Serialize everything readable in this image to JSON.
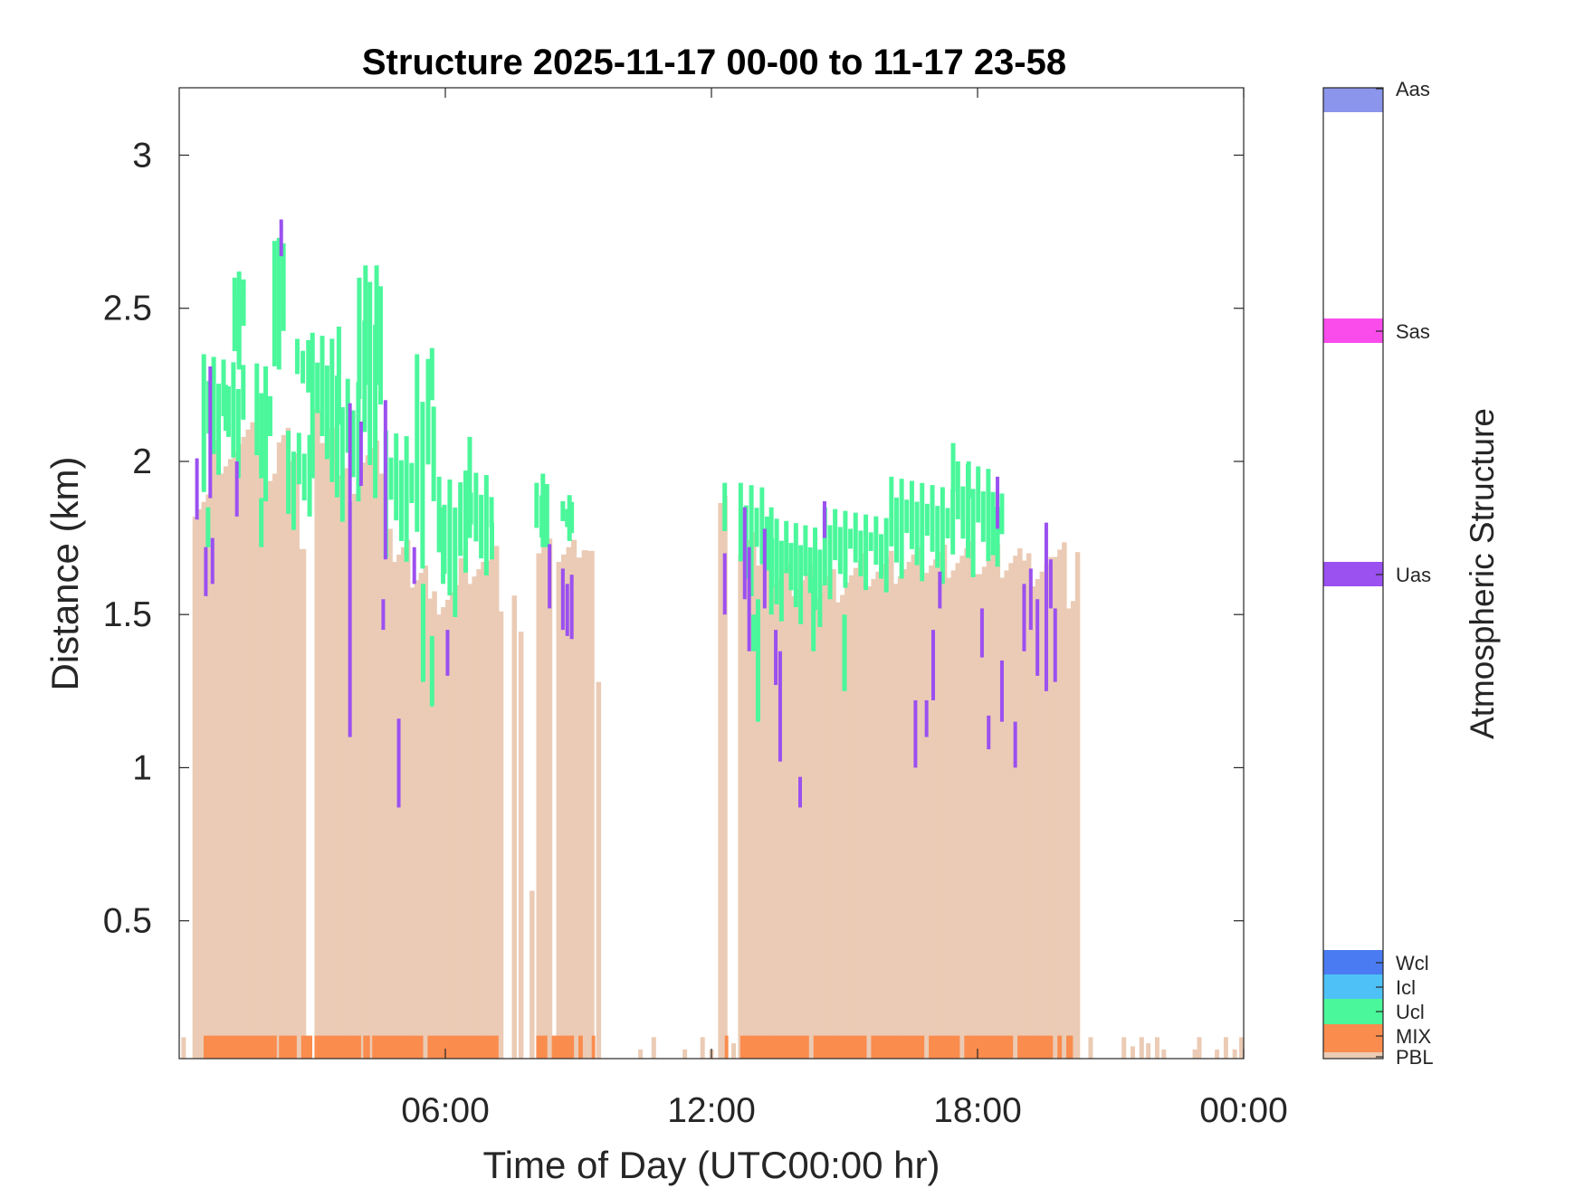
{
  "chart_data": {
    "type": "bar",
    "title": "Structure 2025-11-17 00-00 to 11-17 23-58",
    "xlabel": "Time of Day (UTC00:00 hr)",
    "ylabel": "Distance (km)",
    "xlim": [
      0,
      24
    ],
    "ylim": [
      0.05,
      3.22
    ],
    "xticks": [
      {
        "v": 6,
        "label": "06:00"
      },
      {
        "v": 12,
        "label": "12:00"
      },
      {
        "v": 18,
        "label": "18:00"
      },
      {
        "v": 24,
        "label": "00:00"
      }
    ],
    "yticks": [
      {
        "v": 0.5,
        "label": "0.5"
      },
      {
        "v": 1,
        "label": "1"
      },
      {
        "v": 1.5,
        "label": "1.5"
      },
      {
        "v": 2,
        "label": "2"
      },
      {
        "v": 2.5,
        "label": "2.5"
      },
      {
        "v": 3,
        "label": "3"
      }
    ],
    "grid": false,
    "colorbar": {
      "label": "Atmospheric Structure",
      "categories": [
        {
          "name": "PBL",
          "color": "#EBCBB5"
        },
        {
          "name": "MIX",
          "color": "#FA8C4E"
        },
        {
          "name": "Ucl",
          "color": "#4BF79B"
        },
        {
          "name": "Icl",
          "color": "#4EC2F7"
        },
        {
          "name": "Wcl",
          "color": "#4A7BF2"
        },
        {
          "name": "Uas",
          "color": "#9B50F0"
        },
        {
          "name": "Sas",
          "color": "#FA4CEB"
        },
        {
          "name": "Aas",
          "color": "#8A95EB"
        }
      ]
    },
    "pbl_segments": [
      {
        "t0": 0.3,
        "t1": 0.7,
        "top": 1.88
      },
      {
        "t0": 0.7,
        "t1": 1.3,
        "top": 2.02
      },
      {
        "t0": 1.3,
        "t1": 1.8,
        "top": 2.08
      },
      {
        "t0": 1.8,
        "t1": 2.2,
        "top": 1.96
      },
      {
        "t0": 2.2,
        "t1": 2.7,
        "top": 2.05
      },
      {
        "t0": 2.7,
        "t1": 2.85,
        "top": 1.75
      },
      {
        "t0": 3.05,
        "t1": 3.5,
        "top": 2.12
      },
      {
        "t0": 3.5,
        "t1": 4.0,
        "top": 1.93
      },
      {
        "t0": 4.0,
        "t1": 4.6,
        "top": 2.02
      },
      {
        "t0": 4.6,
        "t1": 5.2,
        "top": 1.72
      },
      {
        "t0": 5.2,
        "t1": 5.8,
        "top": 1.6
      },
      {
        "t0": 5.8,
        "t1": 6.3,
        "top": 1.56
      },
      {
        "t0": 6.3,
        "t1": 6.9,
        "top": 1.66
      },
      {
        "t0": 6.9,
        "t1": 7.2,
        "top": 1.7
      },
      {
        "t0": 7.2,
        "t1": 7.3,
        "top": 1.45
      },
      {
        "t0": 7.5,
        "t1": 7.6,
        "top": 1.55
      },
      {
        "t0": 7.65,
        "t1": 7.75,
        "top": 1.48
      },
      {
        "t0": 7.9,
        "t1": 8.0,
        "top": 0.55
      },
      {
        "t0": 8.05,
        "t1": 8.4,
        "top": 1.7
      },
      {
        "t0": 8.5,
        "t1": 8.95,
        "top": 1.72
      },
      {
        "t0": 8.95,
        "t1": 9.2,
        "top": 1.65
      },
      {
        "t0": 9.2,
        "t1": 9.35,
        "top": 1.72
      },
      {
        "t0": 9.4,
        "t1": 9.5,
        "top": 1.34
      },
      {
        "t0": 12.15,
        "t1": 12.35,
        "top": 1.84
      },
      {
        "t0": 12.6,
        "t1": 13.2,
        "top": 1.72
      },
      {
        "t0": 13.2,
        "t1": 14.0,
        "top": 1.62
      },
      {
        "t0": 14.0,
        "t1": 15.0,
        "top": 1.6
      },
      {
        "t0": 15.0,
        "t1": 16.0,
        "top": 1.64
      },
      {
        "t0": 16.0,
        "t1": 17.0,
        "top": 1.66
      },
      {
        "t0": 17.0,
        "t1": 18.0,
        "top": 1.68
      },
      {
        "t0": 18.0,
        "t1": 19.0,
        "top": 1.68
      },
      {
        "t0": 19.0,
        "t1": 19.7,
        "top": 1.64
      },
      {
        "t0": 19.7,
        "t1": 20.0,
        "top": 1.7
      },
      {
        "t0": 20.0,
        "t1": 20.2,
        "top": 1.58
      },
      {
        "t0": 20.2,
        "t1": 20.3,
        "top": 1.68
      }
    ],
    "mix_segments": [
      {
        "t0": 0.55,
        "t1": 2.2
      },
      {
        "t0": 2.25,
        "t1": 2.65
      },
      {
        "t0": 2.75,
        "t1": 3.0
      },
      {
        "t0": 3.05,
        "t1": 4.1
      },
      {
        "t0": 4.15,
        "t1": 4.3
      },
      {
        "t0": 4.35,
        "t1": 5.5
      },
      {
        "t0": 5.6,
        "t1": 7.2
      },
      {
        "t0": 8.05,
        "t1": 8.3
      },
      {
        "t0": 8.4,
        "t1": 8.9
      },
      {
        "t0": 9.0,
        "t1": 9.1
      },
      {
        "t0": 9.3,
        "t1": 9.38
      },
      {
        "t0": 12.3,
        "t1": 12.38
      },
      {
        "t0": 12.65,
        "t1": 14.2
      },
      {
        "t0": 14.3,
        "t1": 15.5
      },
      {
        "t0": 15.6,
        "t1": 16.8
      },
      {
        "t0": 16.9,
        "t1": 17.6
      },
      {
        "t0": 17.7,
        "t1": 18.8
      },
      {
        "t0": 18.9,
        "t1": 19.7
      },
      {
        "t0": 19.8,
        "t1": 19.9
      },
      {
        "t0": 20.0,
        "t1": 20.15
      }
    ],
    "pbl_sparse_bars": [
      {
        "t": 0.1,
        "top": 0.12
      },
      {
        "t": 10.4,
        "top": 0.08
      },
      {
        "t": 10.7,
        "top": 0.12
      },
      {
        "t": 11.4,
        "top": 0.08
      },
      {
        "t": 11.8,
        "top": 0.12
      },
      {
        "t": 12.0,
        "top": 0.08
      },
      {
        "t": 12.5,
        "top": 0.1
      },
      {
        "t": 20.55,
        "top": 0.12
      },
      {
        "t": 21.3,
        "top": 0.12
      },
      {
        "t": 21.5,
        "top": 0.09
      },
      {
        "t": 21.7,
        "top": 0.12
      },
      {
        "t": 21.85,
        "top": 0.1
      },
      {
        "t": 22.05,
        "top": 0.12
      },
      {
        "t": 22.2,
        "top": 0.08
      },
      {
        "t": 22.9,
        "top": 0.08
      },
      {
        "t": 23.0,
        "top": 0.12
      },
      {
        "t": 23.4,
        "top": 0.08
      },
      {
        "t": 23.6,
        "top": 0.12
      },
      {
        "t": 23.8,
        "top": 0.08
      },
      {
        "t": 23.95,
        "top": 0.12
      }
    ],
    "ucl_bands": [
      {
        "t0": 0.5,
        "t1": 1.5,
        "lo": 1.9,
        "hi": 2.35
      },
      {
        "t0": 1.2,
        "t1": 1.5,
        "lo": 2.3,
        "hi": 2.6
      },
      {
        "t0": 1.7,
        "t1": 2.1,
        "lo": 1.82,
        "hi": 2.32
      },
      {
        "t0": 2.1,
        "t1": 2.4,
        "lo": 2.3,
        "hi": 2.72
      },
      {
        "t0": 2.4,
        "t1": 3.0,
        "lo": 1.75,
        "hi": 2.1
      },
      {
        "t0": 2.6,
        "t1": 3.1,
        "lo": 2.2,
        "hi": 2.4
      },
      {
        "t0": 2.95,
        "t1": 3.5,
        "lo": 1.92,
        "hi": 2.42
      },
      {
        "t0": 3.5,
        "t1": 4.1,
        "lo": 1.75,
        "hi": 2.28
      },
      {
        "t0": 4.0,
        "t1": 4.6,
        "lo": 1.88,
        "hi": 2.6
      },
      {
        "t0": 4.6,
        "t1": 5.3,
        "lo": 1.65,
        "hi": 2.1
      },
      {
        "t0": 5.3,
        "t1": 5.8,
        "lo": 1.55,
        "hi": 2.35
      },
      {
        "t0": 5.8,
        "t1": 6.4,
        "lo": 1.48,
        "hi": 1.95
      },
      {
        "t0": 6.4,
        "t1": 7.1,
        "lo": 1.6,
        "hi": 1.97
      },
      {
        "t0": 8.0,
        "t1": 8.35,
        "lo": 1.72,
        "hi": 1.93
      },
      {
        "t0": 8.6,
        "t1": 8.9,
        "lo": 1.74,
        "hi": 1.87
      },
      {
        "t0": 12.25,
        "t1": 12.35,
        "lo": 1.75,
        "hi": 1.93
      },
      {
        "t0": 12.6,
        "t1": 13.2,
        "lo": 1.55,
        "hi": 1.93
      },
      {
        "t0": 13.2,
        "t1": 14.5,
        "lo": 1.45,
        "hi": 1.82
      },
      {
        "t0": 14.5,
        "t1": 16.0,
        "lo": 1.55,
        "hi": 1.85
      },
      {
        "t0": 16.0,
        "t1": 17.5,
        "lo": 1.6,
        "hi": 1.95
      },
      {
        "t0": 17.5,
        "t1": 18.3,
        "lo": 1.58,
        "hi": 2.0
      },
      {
        "t0": 18.3,
        "t1": 18.6,
        "lo": 1.65,
        "hi": 1.9
      }
    ],
    "ucl_lines": [
      {
        "t": 2.25,
        "lo": 2.3,
        "hi": 2.73
      },
      {
        "t": 1.35,
        "lo": 2.3,
        "hi": 2.62
      },
      {
        "t": 1.05,
        "lo": 2.1,
        "hi": 2.25
      },
      {
        "t": 0.65,
        "lo": 1.72,
        "hi": 1.85
      },
      {
        "t": 1.85,
        "lo": 1.72,
        "hi": 1.88
      },
      {
        "t": 3.6,
        "lo": 2.12,
        "hi": 2.44
      },
      {
        "t": 4.2,
        "lo": 2.25,
        "hi": 2.64
      },
      {
        "t": 4.45,
        "lo": 2.25,
        "hi": 2.64
      },
      {
        "t": 5.7,
        "lo": 2.2,
        "hi": 2.37
      },
      {
        "t": 5.5,
        "lo": 1.28,
        "hi": 1.6
      },
      {
        "t": 5.7,
        "lo": 1.2,
        "hi": 1.43
      },
      {
        "t": 5.95,
        "lo": 1.6,
        "hi": 1.85
      },
      {
        "t": 7.05,
        "lo": 1.68,
        "hi": 1.8
      },
      {
        "t": 6.55,
        "lo": 1.75,
        "hi": 2.08
      },
      {
        "t": 8.2,
        "lo": 1.72,
        "hi": 1.96
      },
      {
        "t": 8.8,
        "lo": 1.74,
        "hi": 1.89
      },
      {
        "t": 13.05,
        "lo": 1.15,
        "hi": 1.55
      },
      {
        "t": 13.35,
        "lo": 1.5,
        "hi": 1.85
      },
      {
        "t": 14.3,
        "lo": 1.38,
        "hi": 1.62
      },
      {
        "t": 15.0,
        "lo": 1.25,
        "hi": 1.5
      },
      {
        "t": 17.45,
        "lo": 1.9,
        "hi": 2.06
      },
      {
        "t": 17.8,
        "lo": 1.88,
        "hi": 2.0
      },
      {
        "t": 12.95,
        "lo": 1.38,
        "hi": 1.5
      }
    ],
    "uas_lines": [
      {
        "t": 0.4,
        "lo": 1.81,
        "hi": 2.01
      },
      {
        "t": 0.6,
        "lo": 1.56,
        "hi": 1.72
      },
      {
        "t": 0.7,
        "lo": 1.88,
        "hi": 2.31
      },
      {
        "t": 0.75,
        "lo": 1.6,
        "hi": 1.75
      },
      {
        "t": 1.3,
        "lo": 1.82,
        "hi": 2.0
      },
      {
        "t": 2.3,
        "lo": 2.67,
        "hi": 2.79
      },
      {
        "t": 3.85,
        "lo": 1.1,
        "hi": 2.19
      },
      {
        "t": 4.1,
        "lo": 1.92,
        "hi": 2.13
      },
      {
        "t": 4.6,
        "lo": 1.45,
        "hi": 1.55
      },
      {
        "t": 4.65,
        "lo": 1.68,
        "hi": 2.2
      },
      {
        "t": 4.95,
        "lo": 0.87,
        "hi": 1.16
      },
      {
        "t": 5.3,
        "lo": 1.6,
        "hi": 1.72
      },
      {
        "t": 6.05,
        "lo": 1.3,
        "hi": 1.45
      },
      {
        "t": 8.35,
        "lo": 1.52,
        "hi": 1.73
      },
      {
        "t": 8.65,
        "lo": 1.45,
        "hi": 1.65
      },
      {
        "t": 8.75,
        "lo": 1.43,
        "hi": 1.6
      },
      {
        "t": 8.85,
        "lo": 1.42,
        "hi": 1.63
      },
      {
        "t": 12.3,
        "lo": 1.5,
        "hi": 1.7
      },
      {
        "t": 12.75,
        "lo": 1.55,
        "hi": 1.85
      },
      {
        "t": 12.85,
        "lo": 1.38,
        "hi": 1.72
      },
      {
        "t": 13.2,
        "lo": 1.52,
        "hi": 1.78
      },
      {
        "t": 13.45,
        "lo": 1.27,
        "hi": 1.45
      },
      {
        "t": 13.55,
        "lo": 1.02,
        "hi": 1.38
      },
      {
        "t": 14.0,
        "lo": 0.87,
        "hi": 0.97
      },
      {
        "t": 14.55,
        "lo": 1.75,
        "hi": 1.87
      },
      {
        "t": 17.0,
        "lo": 1.22,
        "hi": 1.45
      },
      {
        "t": 18.1,
        "lo": 1.36,
        "hi": 1.52
      },
      {
        "t": 18.25,
        "lo": 1.06,
        "hi": 1.17
      },
      {
        "t": 18.45,
        "lo": 1.78,
        "hi": 1.95
      },
      {
        "t": 19.05,
        "lo": 1.38,
        "hi": 1.6
      },
      {
        "t": 19.2,
        "lo": 1.45,
        "hi": 1.65
      },
      {
        "t": 19.35,
        "lo": 1.3,
        "hi": 1.55
      },
      {
        "t": 19.55,
        "lo": 1.25,
        "hi": 1.8
      },
      {
        "t": 19.65,
        "lo": 1.52,
        "hi": 1.68
      },
      {
        "t": 19.75,
        "lo": 1.28,
        "hi": 1.52
      },
      {
        "t": 16.6,
        "lo": 1.0,
        "hi": 1.22
      },
      {
        "t": 16.85,
        "lo": 1.1,
        "hi": 1.22
      },
      {
        "t": 17.15,
        "lo": 1.52,
        "hi": 1.64
      },
      {
        "t": 18.85,
        "lo": 1.0,
        "hi": 1.15
      },
      {
        "t": 18.55,
        "lo": 1.15,
        "hi": 1.35
      }
    ]
  }
}
